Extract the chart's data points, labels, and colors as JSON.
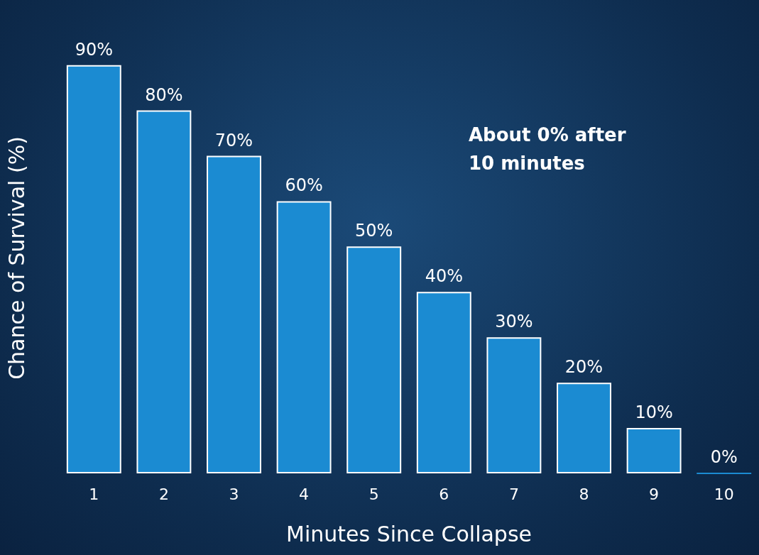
{
  "chart_data": {
    "type": "bar",
    "xlabel": "Minutes Since Collapse",
    "ylabel": "Chance of Survival (%)",
    "categories": [
      "1",
      "2",
      "3",
      "4",
      "5",
      "6",
      "7",
      "8",
      "9",
      "10"
    ],
    "values": [
      90,
      80,
      70,
      60,
      50,
      40,
      30,
      20,
      10,
      0
    ],
    "value_labels": [
      "90%",
      "80%",
      "70%",
      "60%",
      "50%",
      "40%",
      "30%",
      "20%",
      "10%",
      "0%"
    ],
    "color": "#1b8bd2",
    "grid": false,
    "annotations": [
      "About 0% after 10 minutes"
    ]
  }
}
